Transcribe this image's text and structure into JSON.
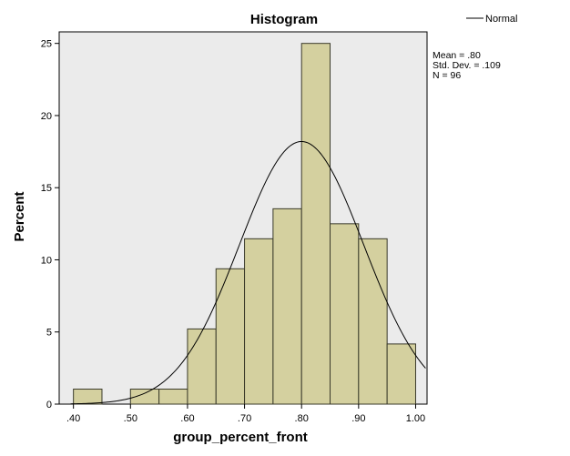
{
  "chart_data": {
    "type": "histogram",
    "title": "Histogram",
    "xlabel": "group_percent_front",
    "ylabel": "Percent",
    "xlim": [
      0.375,
      1.02
    ],
    "ylim": [
      0,
      25.8
    ],
    "x_ticks": [
      0.4,
      0.5,
      0.6,
      0.7,
      0.8,
      0.9,
      1.0
    ],
    "x_tick_labels": [
      ".40",
      ".50",
      ".60",
      ".70",
      ".80",
      ".90",
      "1.00"
    ],
    "y_ticks": [
      0,
      5,
      10,
      15,
      20,
      25
    ],
    "y_tick_labels": [
      "0",
      "5",
      "10",
      "15",
      "20",
      "25"
    ],
    "bin_width": 0.05,
    "bins": [
      {
        "start": 0.4,
        "end": 0.45,
        "value": 1.04
      },
      {
        "start": 0.45,
        "end": 0.5,
        "value": 0
      },
      {
        "start": 0.5,
        "end": 0.55,
        "value": 1.04
      },
      {
        "start": 0.55,
        "end": 0.6,
        "value": 1.04
      },
      {
        "start": 0.6,
        "end": 0.65,
        "value": 5.21
      },
      {
        "start": 0.65,
        "end": 0.7,
        "value": 9.38
      },
      {
        "start": 0.7,
        "end": 0.75,
        "value": 11.46
      },
      {
        "start": 0.75,
        "end": 0.8,
        "value": 13.54
      },
      {
        "start": 0.8,
        "end": 0.85,
        "value": 25.0
      },
      {
        "start": 0.85,
        "end": 0.9,
        "value": 12.5
      },
      {
        "start": 0.9,
        "end": 0.95,
        "value": 11.46
      },
      {
        "start": 0.95,
        "end": 1.0,
        "value": 4.17
      }
    ],
    "normal_curve": {
      "name": "Normal",
      "mean": 0.8,
      "sd": 0.109,
      "peak_percent": 18.2
    },
    "stats": {
      "mean_label": "Mean = .80",
      "sd_label": "Std. Dev. = .109",
      "n_label": "N = 96"
    },
    "legend_position": "top-right",
    "grid": false,
    "colors": {
      "bar_fill": "#d4d09f",
      "bar_stroke": "#3a3a2a",
      "plot_background": "#ebebeb",
      "curve": "#000000"
    }
  }
}
